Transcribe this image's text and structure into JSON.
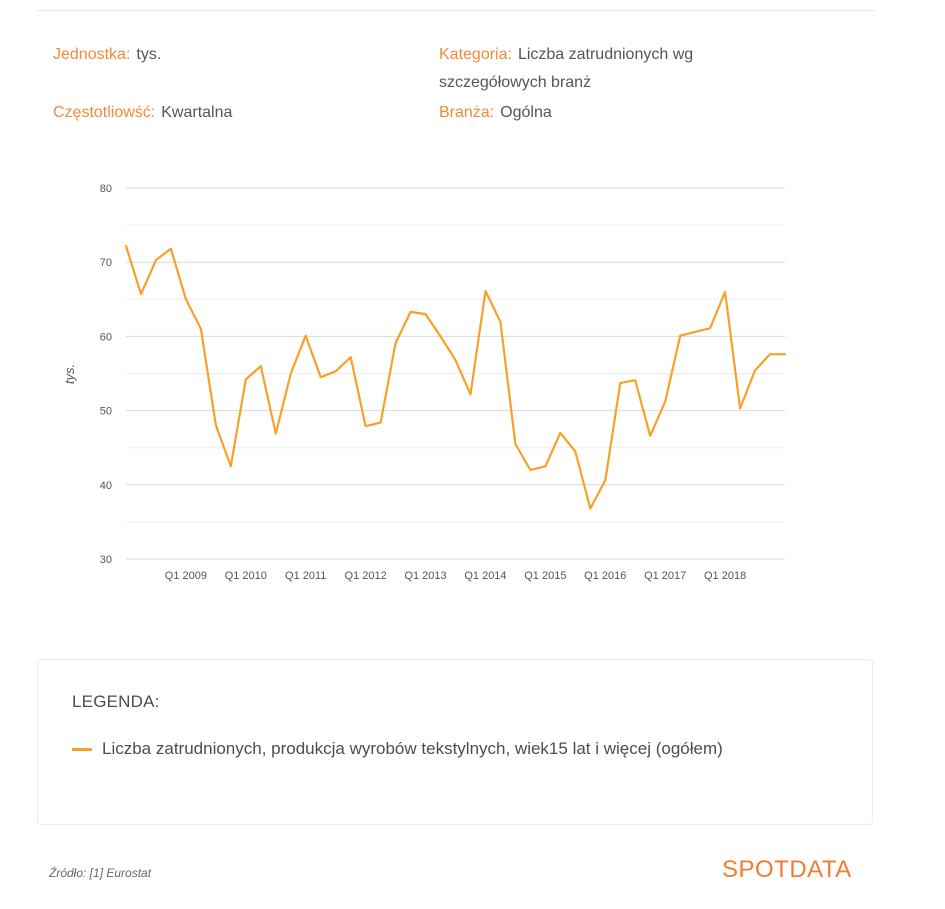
{
  "meta": {
    "unit_label": "Jednostka:",
    "unit_value": "tys.",
    "frequency_label": "Częstotliowść:",
    "frequency_value": "Kwartalna",
    "category_label": "Kategoria:",
    "category_value": "Liczba zatrudnionych wg szczegółowych branż",
    "branch_label": "Branża:",
    "branch_value": "Ogólna"
  },
  "chart_data": {
    "type": "line",
    "ylabel": "tys.",
    "ylim": [
      30,
      80
    ],
    "yticks": [
      30,
      40,
      50,
      60,
      70,
      80
    ],
    "grid": true,
    "xtick_labels": [
      "Q1 2009",
      "Q1 2010",
      "Q1 2011",
      "Q1 2012",
      "Q1 2013",
      "Q1 2014",
      "Q1 2015",
      "Q1 2016",
      "Q1 2017",
      "Q1 2018"
    ],
    "series": [
      {
        "name": "Liczba zatrudnionych, produkcja wyrobów tekstylnych, wiek15 lat i więcej (ogółem)",
        "color": "#f7a128",
        "x": [
          "Q1 2008",
          "Q2 2008",
          "Q3 2008",
          "Q4 2008",
          "Q1 2009",
          "Q2 2009",
          "Q3 2009",
          "Q4 2009",
          "Q1 2010",
          "Q2 2010",
          "Q3 2010",
          "Q4 2010",
          "Q1 2011",
          "Q2 2011",
          "Q3 2011",
          "Q4 2011",
          "Q1 2012",
          "Q2 2012",
          "Q3 2012",
          "Q4 2012",
          "Q1 2013",
          "Q2 2013",
          "Q3 2013",
          "Q4 2013",
          "Q1 2014",
          "Q2 2014",
          "Q3 2014",
          "Q4 2014",
          "Q1 2015",
          "Q2 2015",
          "Q3 2015",
          "Q4 2015",
          "Q1 2016",
          "Q2 2016",
          "Q3 2016",
          "Q4 2016",
          "Q1 2017",
          "Q2 2017",
          "Q3 2017",
          "Q4 2017",
          "Q1 2018",
          "Q2 2018",
          "Q3 2018",
          "Q4 2018",
          "Q1 2019"
        ],
        "values": [
          72.2,
          65.7,
          70.3,
          71.8,
          65.0,
          61.0,
          48.0,
          42.5,
          54.2,
          56.0,
          46.9,
          55.0,
          60.1,
          54.5,
          55.3,
          57.2,
          47.9,
          48.4,
          59.1,
          63.3,
          63.0,
          60.0,
          56.8,
          52.2,
          66.1,
          62.0,
          45.5,
          42.0,
          42.5,
          47.0,
          44.5,
          36.8,
          40.6,
          53.7,
          54.1,
          46.6,
          51.2,
          60.1,
          60.6,
          61.1,
          66.0,
          50.3,
          55.4,
          57.6,
          57.6
        ]
      }
    ]
  },
  "legend": {
    "title": "LEGENDA:",
    "entry": "Liczba zatrudnionych, produkcja wyrobów tekstylnych, wiek15 lat i więcej (ogółem)"
  },
  "footer": {
    "source": "Źródło: [1] Eurostat",
    "logo": "SPOTDATA"
  }
}
